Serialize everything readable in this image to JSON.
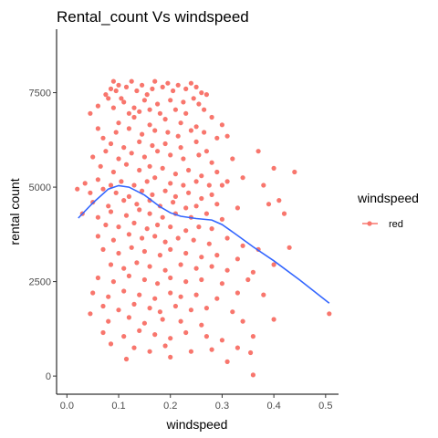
{
  "chart_data": {
    "type": "scatter",
    "title": "Rental_count Vs windspeed",
    "xlabel": "windspeed",
    "ylabel": "rental count",
    "xlim": [
      -0.02,
      0.525
    ],
    "ylim": [
      -480,
      9180
    ],
    "x_ticks": [
      0.0,
      0.1,
      0.2,
      0.3,
      0.4,
      0.5
    ],
    "x_tick_labels": [
      "0.0",
      "0.1",
      "0.2",
      "0.3",
      "0.4",
      "0.5"
    ],
    "y_ticks": [
      0,
      2500,
      5000,
      7500
    ],
    "y_tick_labels": [
      "0",
      "2500",
      "5000",
      "7500"
    ],
    "grid": false,
    "legend": {
      "title": "windspeed",
      "position": "right",
      "entries": [
        {
          "label": "red",
          "color": "#F8766D"
        }
      ]
    },
    "point_color": "#F8766D",
    "smooth_color": "#3366FF",
    "smooth_line": {
      "x": [
        0.022,
        0.05,
        0.08,
        0.1,
        0.12,
        0.15,
        0.18,
        0.2,
        0.22,
        0.25,
        0.28,
        0.3,
        0.33,
        0.36,
        0.4,
        0.45,
        0.507
      ],
      "y": [
        4180,
        4580,
        4950,
        5040,
        5000,
        4790,
        4480,
        4320,
        4230,
        4170,
        4130,
        4010,
        3720,
        3420,
        3050,
        2540,
        1930
      ]
    },
    "series": [
      {
        "name": "red",
        "points": [
          [
            0.045,
            6950
          ],
          [
            0.06,
            7150
          ],
          [
            0.075,
            7450
          ],
          [
            0.085,
            7600
          ],
          [
            0.09,
            7800
          ],
          [
            0.095,
            7550
          ],
          [
            0.1,
            7700
          ],
          [
            0.105,
            7350
          ],
          [
            0.115,
            7650
          ],
          [
            0.125,
            7800
          ],
          [
            0.135,
            7550
          ],
          [
            0.145,
            7700
          ],
          [
            0.155,
            7450
          ],
          [
            0.165,
            7600
          ],
          [
            0.17,
            7800
          ],
          [
            0.185,
            7650
          ],
          [
            0.195,
            7750
          ],
          [
            0.205,
            7550
          ],
          [
            0.215,
            7700
          ],
          [
            0.23,
            7600
          ],
          [
            0.24,
            7750
          ],
          [
            0.25,
            7650
          ],
          [
            0.26,
            7500
          ],
          [
            0.27,
            7450
          ],
          [
            0.08,
            7350
          ],
          [
            0.11,
            7250
          ],
          [
            0.13,
            7100
          ],
          [
            0.15,
            7300
          ],
          [
            0.175,
            7200
          ],
          [
            0.2,
            7300
          ],
          [
            0.225,
            7250
          ],
          [
            0.245,
            7350
          ],
          [
            0.255,
            7200
          ],
          [
            0.09,
            7100
          ],
          [
            0.12,
            6950
          ],
          [
            0.14,
            7000
          ],
          [
            0.16,
            7050
          ],
          [
            0.18,
            6950
          ],
          [
            0.21,
            7050
          ],
          [
            0.23,
            6950
          ],
          [
            0.265,
            7050
          ],
          [
            0.06,
            6550
          ],
          [
            0.1,
            6700
          ],
          [
            0.13,
            6850
          ],
          [
            0.16,
            6650
          ],
          [
            0.19,
            6800
          ],
          [
            0.22,
            6700
          ],
          [
            0.25,
            6600
          ],
          [
            0.28,
            6850
          ],
          [
            0.3,
            6650
          ],
          [
            0.07,
            6300
          ],
          [
            0.095,
            6450
          ],
          [
            0.12,
            6550
          ],
          [
            0.145,
            6400
          ],
          [
            0.17,
            6500
          ],
          [
            0.195,
            6450
          ],
          [
            0.215,
            6350
          ],
          [
            0.24,
            6500
          ],
          [
            0.265,
            6450
          ],
          [
            0.29,
            6300
          ],
          [
            0.31,
            6350
          ],
          [
            0.085,
            6150
          ],
          [
            0.11,
            6050
          ],
          [
            0.14,
            6200
          ],
          [
            0.165,
            6100
          ],
          [
            0.19,
            6150
          ],
          [
            0.22,
            6050
          ],
          [
            0.25,
            6200
          ],
          [
            0.27,
            5950
          ],
          [
            0.05,
            5800
          ],
          [
            0.075,
            5950
          ],
          [
            0.1,
            5750
          ],
          [
            0.125,
            5900
          ],
          [
            0.15,
            5800
          ],
          [
            0.175,
            5950
          ],
          [
            0.2,
            5850
          ],
          [
            0.225,
            5750
          ],
          [
            0.255,
            5850
          ],
          [
            0.28,
            5650
          ],
          [
            0.32,
            5750
          ],
          [
            0.37,
            5950
          ],
          [
            0.065,
            5550
          ],
          [
            0.09,
            5400
          ],
          [
            0.115,
            5600
          ],
          [
            0.14,
            5450
          ],
          [
            0.16,
            5550
          ],
          [
            0.185,
            5500
          ],
          [
            0.21,
            5350
          ],
          [
            0.235,
            5450
          ],
          [
            0.26,
            5300
          ],
          [
            0.29,
            5400
          ],
          [
            0.34,
            5250
          ],
          [
            0.4,
            5500
          ],
          [
            0.44,
            5400
          ],
          [
            0.035,
            5100
          ],
          [
            0.06,
            5200
          ],
          [
            0.085,
            5050
          ],
          [
            0.105,
            5150
          ],
          [
            0.13,
            5050
          ],
          [
            0.155,
            5150
          ],
          [
            0.17,
            5250
          ],
          [
            0.2,
            5100
          ],
          [
            0.225,
            5050
          ],
          [
            0.25,
            5150
          ],
          [
            0.275,
            5050
          ],
          [
            0.3,
            5050
          ],
          [
            0.31,
            5150
          ],
          [
            0.38,
            5050
          ],
          [
            0.02,
            4950
          ],
          [
            0.045,
            4850
          ],
          [
            0.07,
            4950
          ],
          [
            0.095,
            4850
          ],
          [
            0.12,
            4750
          ],
          [
            0.145,
            4900
          ],
          [
            0.165,
            4800
          ],
          [
            0.19,
            4900
          ],
          [
            0.21,
            4750
          ],
          [
            0.235,
            4850
          ],
          [
            0.26,
            4700
          ],
          [
            0.28,
            4800
          ],
          [
            0.05,
            4600
          ],
          [
            0.08,
            4500
          ],
          [
            0.11,
            4650
          ],
          [
            0.135,
            4550
          ],
          [
            0.16,
            4650
          ],
          [
            0.18,
            4500
          ],
          [
            0.205,
            4600
          ],
          [
            0.23,
            4450
          ],
          [
            0.25,
            4500
          ],
          [
            0.29,
            4550
          ],
          [
            0.33,
            4450
          ],
          [
            0.39,
            4550
          ],
          [
            0.41,
            4650
          ],
          [
            0.03,
            4300
          ],
          [
            0.06,
            4200
          ],
          [
            0.085,
            4350
          ],
          [
            0.115,
            4250
          ],
          [
            0.14,
            4400
          ],
          [
            0.16,
            4300
          ],
          [
            0.185,
            4200
          ],
          [
            0.21,
            4300
          ],
          [
            0.24,
            4200
          ],
          [
            0.27,
            4300
          ],
          [
            0.3,
            4150
          ],
          [
            0.42,
            4300
          ],
          [
            0.075,
            4000
          ],
          [
            0.1,
            3950
          ],
          [
            0.13,
            4050
          ],
          [
            0.155,
            3900
          ],
          [
            0.175,
            4000
          ],
          [
            0.2,
            3950
          ],
          [
            0.23,
            3850
          ],
          [
            0.255,
            3950
          ],
          [
            0.28,
            3900
          ],
          [
            0.06,
            3700
          ],
          [
            0.09,
            3600
          ],
          [
            0.12,
            3750
          ],
          [
            0.145,
            3650
          ],
          [
            0.17,
            3700
          ],
          [
            0.19,
            3550
          ],
          [
            0.215,
            3650
          ],
          [
            0.245,
            3600
          ],
          [
            0.275,
            3500
          ],
          [
            0.31,
            3650
          ],
          [
            0.34,
            3450
          ],
          [
            0.37,
            3350
          ],
          [
            0.43,
            3400
          ],
          [
            0.07,
            3350
          ],
          [
            0.1,
            3250
          ],
          [
            0.125,
            3400
          ],
          [
            0.15,
            3300
          ],
          [
            0.18,
            3200
          ],
          [
            0.2,
            3350
          ],
          [
            0.23,
            3250
          ],
          [
            0.26,
            3150
          ],
          [
            0.29,
            3200
          ],
          [
            0.33,
            3100
          ],
          [
            0.085,
            2950
          ],
          [
            0.11,
            2850
          ],
          [
            0.135,
            3000
          ],
          [
            0.16,
            2900
          ],
          [
            0.19,
            2800
          ],
          [
            0.22,
            2950
          ],
          [
            0.25,
            2850
          ],
          [
            0.28,
            2900
          ],
          [
            0.31,
            2800
          ],
          [
            0.36,
            2750
          ],
          [
            0.4,
            2950
          ],
          [
            0.06,
            2600
          ],
          [
            0.09,
            2500
          ],
          [
            0.12,
            2650
          ],
          [
            0.15,
            2550
          ],
          [
            0.175,
            2450
          ],
          [
            0.2,
            2600
          ],
          [
            0.23,
            2500
          ],
          [
            0.26,
            2550
          ],
          [
            0.3,
            2450
          ],
          [
            0.35,
            2550
          ],
          [
            0.05,
            2200
          ],
          [
            0.08,
            2100
          ],
          [
            0.11,
            2250
          ],
          [
            0.14,
            2150
          ],
          [
            0.17,
            2050
          ],
          [
            0.2,
            2200
          ],
          [
            0.22,
            2100
          ],
          [
            0.25,
            2150
          ],
          [
            0.29,
            2050
          ],
          [
            0.33,
            2200
          ],
          [
            0.38,
            2150
          ],
          [
            0.07,
            1850
          ],
          [
            0.1,
            1750
          ],
          [
            0.13,
            1900
          ],
          [
            0.16,
            1800
          ],
          [
            0.18,
            1700
          ],
          [
            0.21,
            1850
          ],
          [
            0.24,
            1750
          ],
          [
            0.27,
            1800
          ],
          [
            0.32,
            1700
          ],
          [
            0.045,
            1650
          ],
          [
            0.08,
            1450
          ],
          [
            0.12,
            1550
          ],
          [
            0.15,
            1400
          ],
          [
            0.185,
            1500
          ],
          [
            0.22,
            1450
          ],
          [
            0.26,
            1350
          ],
          [
            0.34,
            1450
          ],
          [
            0.4,
            1500
          ],
          [
            0.507,
            1650
          ],
          [
            0.07,
            1150
          ],
          [
            0.11,
            1050
          ],
          [
            0.14,
            1200
          ],
          [
            0.17,
            1100
          ],
          [
            0.2,
            1000
          ],
          [
            0.23,
            1150
          ],
          [
            0.27,
            1050
          ],
          [
            0.3,
            950
          ],
          [
            0.36,
            1050
          ],
          [
            0.085,
            850
          ],
          [
            0.13,
            750
          ],
          [
            0.16,
            650
          ],
          [
            0.19,
            800
          ],
          [
            0.24,
            650
          ],
          [
            0.28,
            700
          ],
          [
            0.33,
            750
          ],
          [
            0.115,
            450
          ],
          [
            0.2,
            500
          ],
          [
            0.31,
            380
          ],
          [
            0.355,
            620
          ],
          [
            0.36,
            30
          ]
        ]
      }
    ]
  }
}
